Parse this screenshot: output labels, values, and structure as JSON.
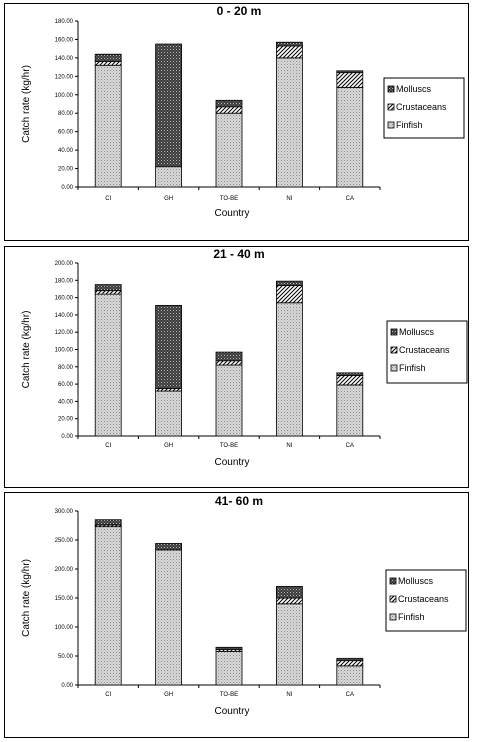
{
  "legend_colors": {
    "Molluscs": "#555555",
    "Crustaceans": "#ffffff",
    "Finfish": "#cfcfcf"
  },
  "chart_data": [
    {
      "type": "bar",
      "stacked": true,
      "title": "0 - 20 m",
      "xlabel": "Country",
      "ylabel": "Catch rate (kg/hr)",
      "categories": [
        "CI",
        "GH",
        "TO-BE",
        "NI",
        "CA"
      ],
      "ylim": [
        0,
        180
      ],
      "yticks": [
        0,
        20,
        40,
        60,
        80,
        100,
        120,
        140,
        160,
        180
      ],
      "ytick_labels": [
        "0.00",
        "20.00",
        "40.00",
        "60.00",
        "80.00",
        "100.00",
        "120.00",
        "140.00",
        "160.00",
        "180.00"
      ],
      "series": [
        {
          "name": "Finfish",
          "values": [
            132,
            22,
            80,
            140,
            108
          ]
        },
        {
          "name": "Crustaceans",
          "values": [
            4,
            0,
            7,
            13,
            16
          ]
        },
        {
          "name": "Molluscs",
          "values": [
            8,
            133,
            7,
            4,
            2
          ]
        }
      ],
      "legend": [
        "Molluscs",
        "Crustaceans",
        "Finfish"
      ],
      "legend_position": "right",
      "grid": false
    },
    {
      "type": "bar",
      "stacked": true,
      "title": "21 - 40 m",
      "xlabel": "Country",
      "ylabel": "Catch rate (kg/hr)",
      "categories": [
        "CI",
        "GH",
        "TO-BE",
        "NI",
        "CA"
      ],
      "ylim": [
        0,
        200
      ],
      "yticks": [
        0,
        20,
        40,
        60,
        80,
        100,
        120,
        140,
        160,
        180,
        200
      ],
      "ytick_labels": [
        "0.00",
        "20.00",
        "40.00",
        "60.00",
        "80.00",
        "100.00",
        "120.00",
        "140.00",
        "160.00",
        "180.00",
        "200.00"
      ],
      "series": [
        {
          "name": "Finfish",
          "values": [
            164,
            52,
            82,
            154,
            59
          ]
        },
        {
          "name": "Crustaceans",
          "values": [
            4,
            3,
            5,
            20,
            11
          ]
        },
        {
          "name": "Molluscs",
          "values": [
            7,
            96,
            10,
            5,
            3
          ]
        }
      ],
      "legend": [
        "Molluscs",
        "Crustaceans",
        "Finfish"
      ],
      "legend_position": "right",
      "grid": false
    },
    {
      "type": "bar",
      "stacked": true,
      "title": "41- 60 m",
      "xlabel": "Country",
      "ylabel": "Catch rate (kg/hr)",
      "categories": [
        "CI",
        "GH",
        "TO-BE",
        "NI",
        "CA"
      ],
      "ylim": [
        0,
        300
      ],
      "yticks": [
        0,
        50,
        100,
        150,
        200,
        250,
        300
      ],
      "ytick_labels": [
        "0.00",
        "50.00",
        "100.00",
        "150.00",
        "200.00",
        "250.00",
        "300.00"
      ],
      "series": [
        {
          "name": "Finfish",
          "values": [
            273,
            233,
            58,
            140,
            33
          ]
        },
        {
          "name": "Crustaceans",
          "values": [
            3,
            0,
            3,
            10,
            9
          ]
        },
        {
          "name": "Molluscs",
          "values": [
            9,
            11,
            4,
            20,
            4
          ]
        }
      ],
      "legend": [
        "Molluscs",
        "Crustaceans",
        "Finfish"
      ],
      "legend_position": "right",
      "grid": false
    }
  ]
}
